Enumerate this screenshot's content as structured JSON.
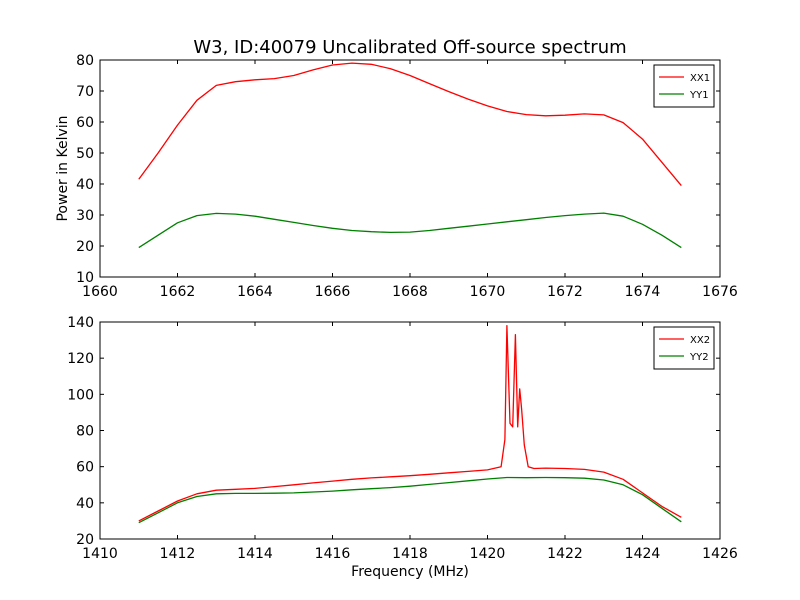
{
  "figure": {
    "title": "W3, ID:40079 Uncalibrated Off-source spectrum"
  },
  "chart_data": [
    {
      "type": "line",
      "title": "W3, ID:40079 Uncalibrated Off-source spectrum",
      "xlabel": "",
      "ylabel": "Power in Kelvin",
      "xlim": [
        1660,
        1676
      ],
      "ylim": [
        10,
        80
      ],
      "xticks": [
        1660,
        1662,
        1664,
        1666,
        1668,
        1670,
        1672,
        1674,
        1676
      ],
      "yticks": [
        10,
        20,
        30,
        40,
        50,
        60,
        70,
        80
      ],
      "legend_position": "top-right",
      "series": [
        {
          "name": "XX1",
          "color": "#ff0000",
          "x": [
            1661.0,
            1661.5,
            1662.0,
            1662.5,
            1663.0,
            1663.5,
            1664.0,
            1664.5,
            1665.0,
            1665.5,
            1666.0,
            1666.5,
            1667.0,
            1667.5,
            1668.0,
            1668.5,
            1669.0,
            1669.5,
            1670.0,
            1670.5,
            1671.0,
            1671.5,
            1672.0,
            1672.5,
            1673.0,
            1673.5,
            1674.0,
            1674.5,
            1675.0
          ],
          "y": [
            41.5,
            50.0,
            59.0,
            67.0,
            71.8,
            73.0,
            73.6,
            74.0,
            75.0,
            76.8,
            78.4,
            79.0,
            78.6,
            77.2,
            75.0,
            72.4,
            69.8,
            67.4,
            65.2,
            63.4,
            62.4,
            62.0,
            62.2,
            62.6,
            62.3,
            59.8,
            54.5,
            47.0,
            39.5
          ]
        },
        {
          "name": "YY1",
          "color": "#008000",
          "x": [
            1661.0,
            1661.5,
            1662.0,
            1662.5,
            1663.0,
            1663.5,
            1664.0,
            1664.5,
            1665.0,
            1665.5,
            1666.0,
            1666.5,
            1667.0,
            1667.5,
            1668.0,
            1668.5,
            1669.0,
            1669.5,
            1670.0,
            1670.5,
            1671.0,
            1671.5,
            1672.0,
            1672.5,
            1673.0,
            1673.5,
            1674.0,
            1674.5,
            1675.0
          ],
          "y": [
            19.5,
            23.5,
            27.5,
            29.8,
            30.5,
            30.3,
            29.6,
            28.6,
            27.6,
            26.6,
            25.7,
            25.0,
            24.6,
            24.4,
            24.5,
            25.0,
            25.7,
            26.4,
            27.1,
            27.8,
            28.5,
            29.2,
            29.8,
            30.3,
            30.6,
            29.6,
            27.0,
            23.5,
            19.5
          ]
        }
      ]
    },
    {
      "type": "line",
      "title": "",
      "xlabel": "Frequency (MHz)",
      "ylabel": "",
      "xlim": [
        1410,
        1426
      ],
      "ylim": [
        20,
        140
      ],
      "xticks": [
        1410,
        1412,
        1414,
        1416,
        1418,
        1420,
        1422,
        1424,
        1426
      ],
      "yticks": [
        20,
        40,
        60,
        80,
        100,
        120,
        140
      ],
      "legend_position": "top-right",
      "series": [
        {
          "name": "XX2",
          "color": "#ff0000",
          "x": [
            1411.0,
            1411.5,
            1412.0,
            1412.5,
            1413.0,
            1413.5,
            1414.0,
            1414.5,
            1415.0,
            1415.5,
            1416.0,
            1416.5,
            1417.0,
            1417.5,
            1418.0,
            1418.5,
            1419.0,
            1419.5,
            1420.0,
            1420.35,
            1420.45,
            1420.5,
            1420.58,
            1420.65,
            1420.72,
            1420.78,
            1420.83,
            1420.88,
            1420.95,
            1421.05,
            1421.2,
            1421.5,
            1422.0,
            1422.5,
            1423.0,
            1423.5,
            1424.0,
            1424.5,
            1425.0
          ],
          "y": [
            30.0,
            35.5,
            41.0,
            45.0,
            47.0,
            47.5,
            48.0,
            49.0,
            50.0,
            51.0,
            52.0,
            53.0,
            53.8,
            54.4,
            55.0,
            55.8,
            56.6,
            57.4,
            58.2,
            60.0,
            75.0,
            138.0,
            84.0,
            82.0,
            133.0,
            82.0,
            103.0,
            92.0,
            72.0,
            60.0,
            59.0,
            59.2,
            59.0,
            58.5,
            57.0,
            53.0,
            45.5,
            38.0,
            32.0
          ]
        },
        {
          "name": "YY2",
          "color": "#008000",
          "x": [
            1411.0,
            1411.5,
            1412.0,
            1412.5,
            1413.0,
            1413.5,
            1414.0,
            1414.5,
            1415.0,
            1415.5,
            1416.0,
            1416.5,
            1417.0,
            1417.5,
            1418.0,
            1418.5,
            1419.0,
            1419.5,
            1420.0,
            1420.5,
            1421.0,
            1421.5,
            1422.0,
            1422.5,
            1423.0,
            1423.5,
            1424.0,
            1424.5,
            1425.0
          ],
          "y": [
            29.0,
            34.5,
            40.0,
            43.5,
            45.0,
            45.2,
            45.2,
            45.3,
            45.5,
            46.0,
            46.5,
            47.2,
            47.8,
            48.4,
            49.2,
            50.2,
            51.2,
            52.2,
            53.2,
            54.0,
            53.9,
            54.0,
            53.9,
            53.6,
            52.6,
            50.0,
            44.5,
            37.0,
            29.5
          ]
        }
      ]
    }
  ]
}
